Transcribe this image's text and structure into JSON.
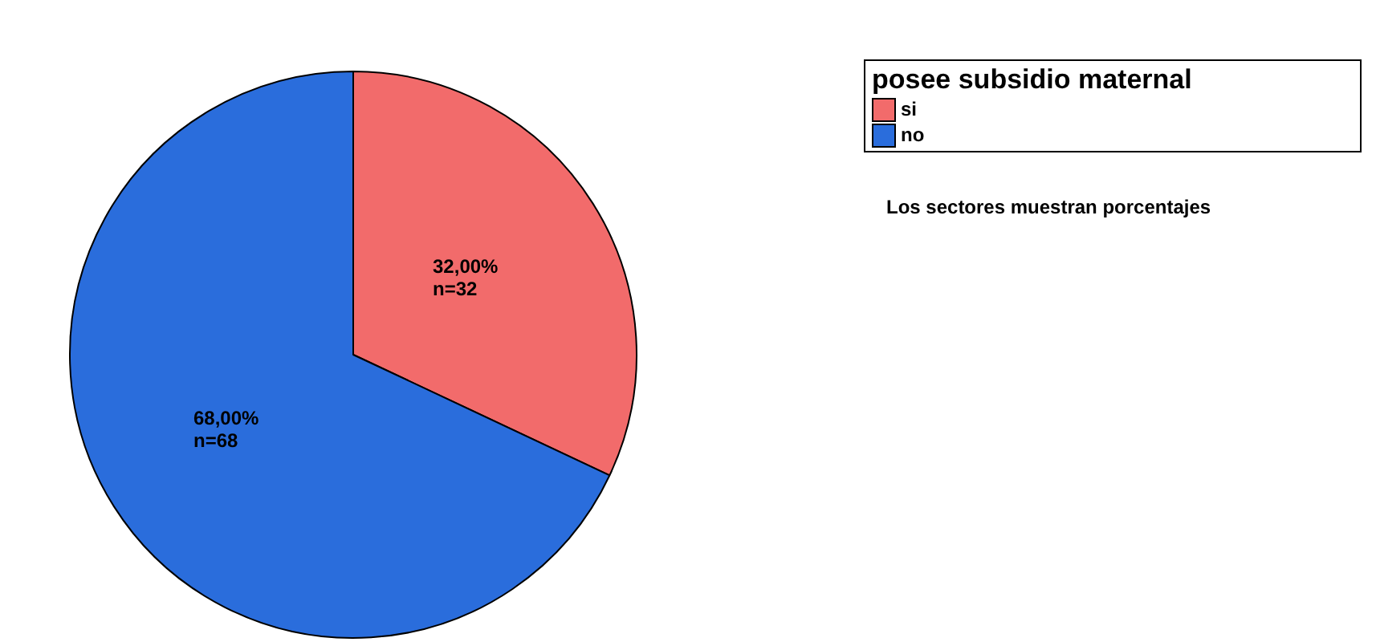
{
  "chart_data": {
    "type": "pie",
    "categories": [
      "si",
      "no"
    ],
    "values": [
      32,
      68
    ],
    "colors": [
      "#f26b6b",
      "#2a6ddc"
    ],
    "value_labels": [
      "32,00%\nn=32",
      "68,00%\nn=68"
    ],
    "legend_title": "posee subsidio maternal",
    "legend": "top right",
    "annotations": [
      "Los sectores muestran porcentajes"
    ]
  }
}
